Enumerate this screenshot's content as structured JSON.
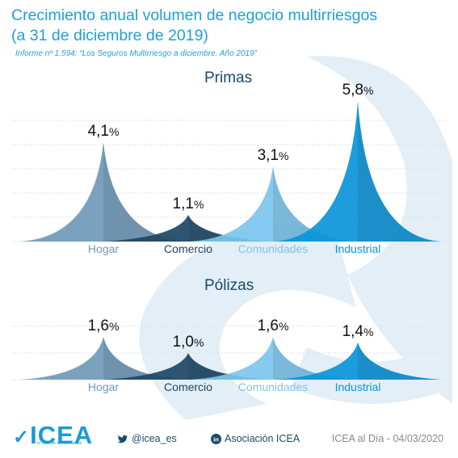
{
  "title_line1": "Crecimiento anual volumen de negocio multirriesgos",
  "title_line2": "(a 31 de diciembre de 2019)",
  "subtitle": "Informe nº 1.594: “Los Seguros Multirriesgo a diciembre. Año 2019”",
  "footer": {
    "logo_text": "ICEA",
    "logo_tagline": "el valor de la información",
    "twitter": "@icea_es",
    "linkedin": "Asociación ICEA",
    "date": "ICEA al Día - 04/03/2020"
  },
  "colors": {
    "Hogar": "#6f99b8",
    "Comercio": "#1d4766",
    "Comunidades": "#7cc6ee",
    "Industrial": "#0a95d9",
    "title": "#1e9fd8"
  },
  "chart_data": [
    {
      "type": "bar",
      "title": "Primas",
      "unit": "%",
      "categories": [
        "Hogar",
        "Comercio",
        "Comunidades",
        "Industrial"
      ],
      "values": [
        4.1,
        1.1,
        3.1,
        5.8
      ],
      "labels": [
        "4,1",
        "1,1",
        "3,1",
        "5,8"
      ],
      "ylim": [
        0,
        6
      ],
      "grid": true,
      "legend": "none"
    },
    {
      "type": "bar",
      "title": "Pólizas",
      "unit": "%",
      "categories": [
        "Hogar",
        "Comercio",
        "Comunidades",
        "Industrial"
      ],
      "values": [
        1.6,
        1.0,
        1.6,
        1.4
      ],
      "labels": [
        "1,6",
        "1,0",
        "1,6",
        "1,4"
      ],
      "ylim": [
        0,
        6
      ],
      "grid": true,
      "legend": "none"
    }
  ]
}
